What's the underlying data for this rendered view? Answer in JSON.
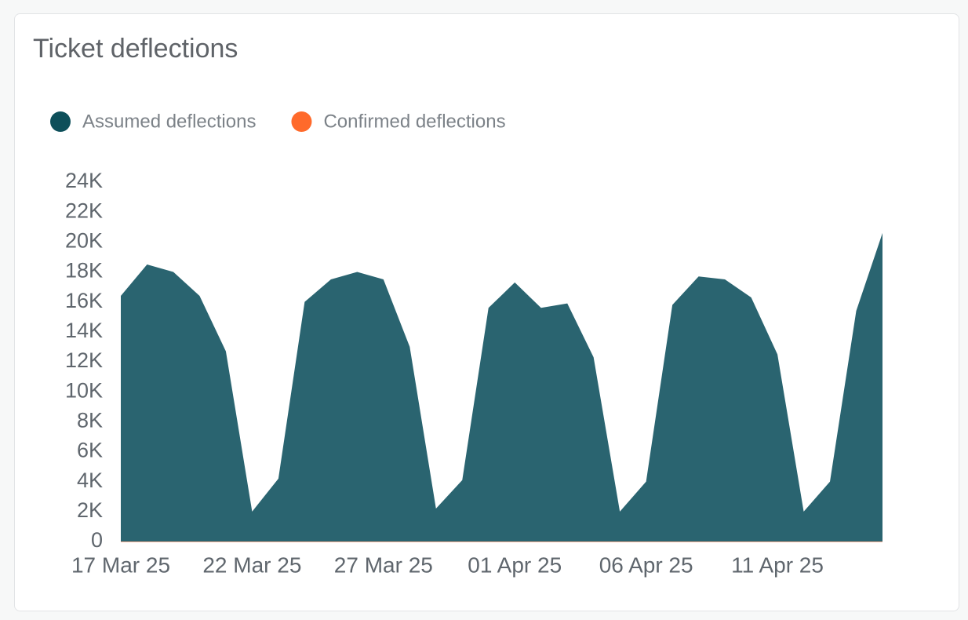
{
  "chart_data": {
    "type": "area",
    "title": "Ticket deflections",
    "categories": [
      "17 Mar 25",
      null,
      null,
      null,
      null,
      "22 Mar 25",
      null,
      null,
      null,
      null,
      "27 Mar 25",
      null,
      null,
      null,
      null,
      "01 Apr 25",
      null,
      null,
      null,
      null,
      "06 Apr 25",
      null,
      null,
      null,
      null,
      "11 Apr 25",
      null,
      null,
      null,
      null
    ],
    "series": [
      {
        "name": "Assumed deflections",
        "color": "#2a6470",
        "legend_color": "#0d4f5a",
        "values": [
          16400,
          18500,
          18000,
          16400,
          12700,
          2000,
          4200,
          16000,
          17500,
          18000,
          17500,
          13000,
          2200,
          4100,
          15600,
          17300,
          15600,
          15900,
          12300,
          2000,
          4000,
          15800,
          17700,
          17500,
          16300,
          12500,
          2000,
          4000,
          15400,
          20600
        ]
      },
      {
        "name": "Confirmed deflections",
        "color": "#ff6a2b",
        "legend_color": "#ff6a2b",
        "values": [
          0,
          0,
          0,
          0,
          0,
          0,
          0,
          0,
          0,
          0,
          0,
          0,
          0,
          0,
          0,
          0,
          0,
          0,
          0,
          0,
          0,
          0,
          0,
          0,
          0,
          0,
          0,
          0,
          0,
          0
        ]
      }
    ],
    "ylim": [
      0,
      24000
    ],
    "yticks": [
      {
        "value": 0,
        "label": "0"
      },
      {
        "value": 2000,
        "label": "2K"
      },
      {
        "value": 4000,
        "label": "4K"
      },
      {
        "value": 6000,
        "label": "6K"
      },
      {
        "value": 8000,
        "label": "8K"
      },
      {
        "value": 10000,
        "label": "10K"
      },
      {
        "value": 12000,
        "label": "12K"
      },
      {
        "value": 14000,
        "label": "14K"
      },
      {
        "value": 16000,
        "label": "16K"
      },
      {
        "value": 18000,
        "label": "18K"
      },
      {
        "value": 20000,
        "label": "20K"
      },
      {
        "value": 22000,
        "label": "22K"
      },
      {
        "value": 24000,
        "label": "24K"
      }
    ],
    "grid": false
  }
}
